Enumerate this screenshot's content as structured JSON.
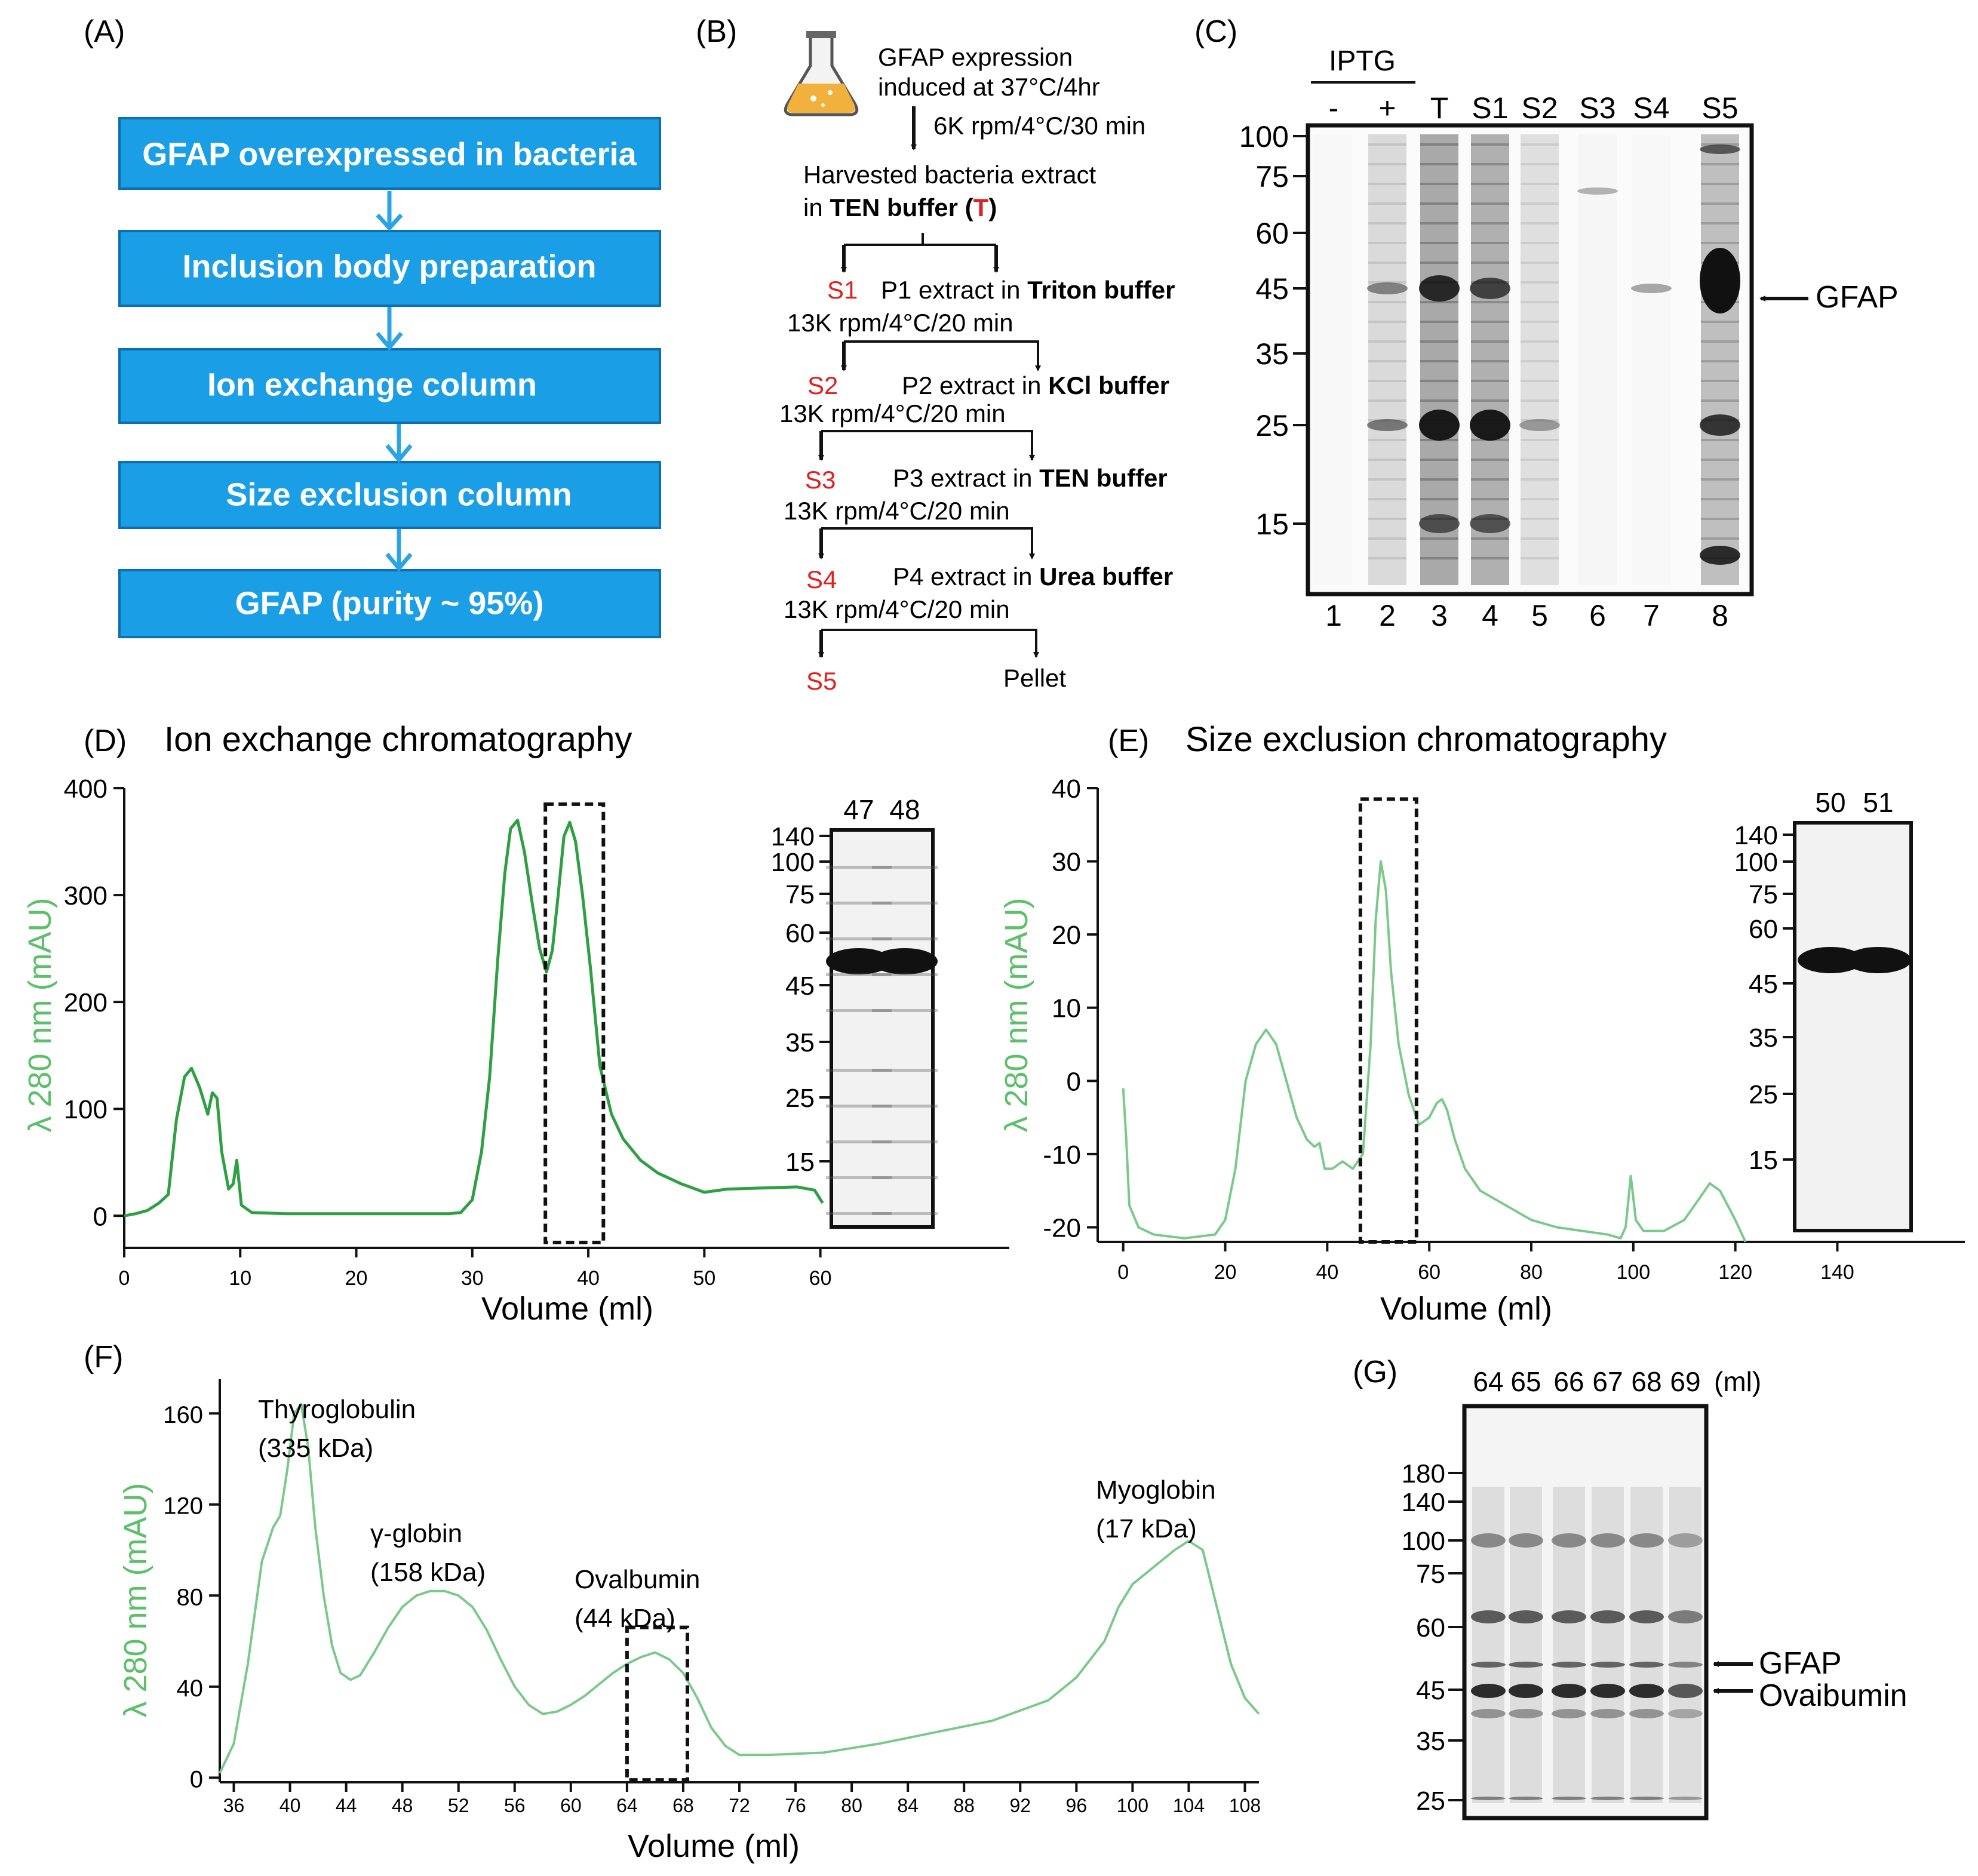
{
  "panels": {
    "A": {
      "label": "(A)"
    },
    "B": {
      "label": "(B)"
    },
    "C": {
      "label": "(C)"
    },
    "D": {
      "label": "(D)",
      "title": "Ion exchange chromatography"
    },
    "E": {
      "label": "(E)",
      "title": "Size exclusion chromatography"
    },
    "F": {
      "label": "(F)"
    },
    "G": {
      "label": "(G)"
    }
  },
  "colors": {
    "box_fill": "#1a9fe6",
    "box_arrow": "#2ba4e6",
    "trace_d": "#2ea043",
    "trace_ef": "#7bc98a",
    "axis_label": "#5cc06a",
    "red": "#e02020"
  },
  "flow_a": {
    "steps": [
      "GFAP  overexpressed in bacteria",
      "Inclusion body preparation",
      "Ion exchange column",
      "Size exclusion column",
      "GFAP (purity ~ 95%)"
    ]
  },
  "protocol_b": {
    "expression_line1": "GFAP expression",
    "expression_line2": "induced at 37°C/4hr",
    "spin1": "6K rpm/4°C/30 min",
    "harvest_line1": "Harvested bacteria extract",
    "harvest_line2_pre": "in ",
    "harvest_buffer": "TEN buffer",
    "harvest_paren_open": " (",
    "harvest_T": "T",
    "harvest_paren_close": ")",
    "steps": [
      {
        "s": "S1",
        "p_text": "P1 extract in ",
        "buffer": "Triton buffer",
        "spin": "13K rpm/4°C/20 min"
      },
      {
        "s": "S2",
        "p_text": "P2 extract in ",
        "buffer": "KCl buffer",
        "spin": "13K rpm/4°C/20 min"
      },
      {
        "s": "S3",
        "p_text": "P3 extract in ",
        "buffer": "TEN buffer",
        "spin": "13K rpm/4°C/20 min"
      },
      {
        "s": "S4",
        "p_text": "P4 extract in ",
        "buffer": "Urea buffer",
        "spin": "13K rpm/4°C/20 min"
      }
    ],
    "final_s": "S5",
    "pellet": "Pellet"
  },
  "gel_c": {
    "iptg": "IPTG",
    "lanes_top": [
      "-",
      "+",
      "T",
      "S1",
      "S2",
      "S3",
      "S4",
      "S5"
    ],
    "lanes_bottom": [
      "1",
      "2",
      "3",
      "4",
      "5",
      "6",
      "7",
      "8"
    ],
    "markers": [
      "100",
      "75",
      "60",
      "45",
      "35",
      "25",
      "15"
    ],
    "arrow_label": "GFAP"
  },
  "chart_data": [
    {
      "id": "D",
      "type": "line",
      "title": "Ion exchange chromatography",
      "xlabel": "Volume (ml)",
      "ylabel": "λ 280 nm (mAU)",
      "xlim": [
        0,
        75
      ],
      "ylim": [
        -30,
        400
      ],
      "xticks": [
        "0",
        "10",
        "20",
        "30",
        "40",
        "50",
        "60"
      ],
      "yticks": [
        "0",
        "100",
        "200",
        "300",
        "400"
      ],
      "x": [
        0,
        1,
        2,
        3,
        3.8,
        4.5,
        5.2,
        5.8,
        6.5,
        7.2,
        7.6,
        8.0,
        8.4,
        9.0,
        9.4,
        9.7,
        10.1,
        11,
        14,
        20,
        25,
        28,
        29,
        30,
        30.8,
        31.5,
        32.2,
        32.8,
        33.3,
        33.9,
        34.5,
        35.2,
        35.8,
        36.4,
        36.9,
        37.4,
        37.9,
        38.4,
        38.9,
        39.5,
        40.2,
        41,
        42,
        43,
        44.5,
        46,
        48,
        50,
        52,
        55,
        58,
        59.5,
        60.2
      ],
      "y": [
        0,
        2,
        5,
        12,
        20,
        90,
        130,
        138,
        120,
        95,
        115,
        110,
        60,
        25,
        30,
        52,
        10,
        3,
        2,
        2,
        2,
        2,
        3,
        15,
        60,
        130,
        240,
        320,
        362,
        370,
        340,
        290,
        250,
        228,
        248,
        300,
        355,
        368,
        350,
        300,
        230,
        140,
        95,
        72,
        52,
        40,
        30,
        22,
        25,
        26,
        27,
        24,
        12
      ],
      "rect_x": [
        36.3,
        41.3
      ],
      "rect_y": [
        -25,
        385
      ],
      "inset": {
        "lanes": [
          "47",
          "48"
        ],
        "markers": [
          "140",
          "100",
          "75",
          "60",
          "45",
          "35",
          "25",
          "15"
        ]
      }
    },
    {
      "id": "E",
      "type": "line",
      "title": "Size exclusion chromatography",
      "xlabel": "Volume (ml)",
      "ylabel": "λ 280 nm (mAU)",
      "xlim": [
        -5,
        165
      ],
      "ylim": [
        -22,
        40
      ],
      "xticks": [
        "0",
        "20",
        "40",
        "60",
        "80",
        "100",
        "120",
        "140"
      ],
      "yticks": [
        "-20",
        "-10",
        "0",
        "10",
        "20",
        "30",
        "40"
      ],
      "x": [
        0,
        0.6,
        1.2,
        3,
        6,
        12,
        18,
        20,
        22,
        24,
        26,
        28,
        30,
        32,
        34,
        36,
        37.5,
        38.5,
        39.5,
        41,
        43,
        45,
        47,
        48.5,
        49.5,
        50.5,
        51.5,
        52.5,
        54,
        56,
        58,
        60,
        61.5,
        62.5,
        63.5,
        65,
        67,
        70,
        75,
        80,
        85,
        90,
        95,
        97.5,
        98.5,
        99.5,
        100.5,
        102,
        106,
        110,
        113,
        115,
        117,
        120,
        122
      ],
      "y": [
        -1,
        -8,
        -17,
        -20,
        -21,
        -21.5,
        -21,
        -19,
        -12,
        0,
        5,
        7,
        5,
        0,
        -5,
        -8,
        -9,
        -8.5,
        -12,
        -12,
        -11,
        -12,
        -10,
        5,
        22,
        30,
        26,
        15,
        5,
        -2,
        -6,
        -5,
        -3,
        -2.5,
        -4,
        -8,
        -12,
        -15,
        -17,
        -19,
        -20,
        -20.5,
        -21,
        -21.5,
        -20,
        -13,
        -19,
        -20.5,
        -20.5,
        -19,
        -16,
        -14,
        -15,
        -19,
        -22
      ],
      "rect_x": [
        46.5,
        57.5
      ],
      "rect_y": [
        -22,
        38.5
      ],
      "inset": {
        "lanes": [
          "50",
          "51"
        ],
        "markers": [
          "140",
          "100",
          "75",
          "60",
          "45",
          "35",
          "25",
          "15"
        ]
      }
    },
    {
      "id": "F",
      "type": "line",
      "xlabel": "Volume (ml)",
      "ylabel": "λ 280 nm (mAU)",
      "xlim": [
        35,
        109
      ],
      "ylim": [
        -2,
        175
      ],
      "xticks": [
        "36",
        "40",
        "44",
        "48",
        "52",
        "56",
        "60",
        "64",
        "68",
        "72",
        "76",
        "80",
        "84",
        "88",
        "92",
        "96",
        "100",
        "104",
        "108"
      ],
      "yticks": [
        "0",
        "40",
        "80",
        "120",
        "160"
      ],
      "x": [
        35,
        36,
        37,
        38,
        38.8,
        39.3,
        39.8,
        40.3,
        40.8,
        41.3,
        41.8,
        42.4,
        43,
        43.6,
        44.3,
        45,
        46,
        47,
        48,
        49,
        50,
        51,
        52,
        53,
        54,
        55,
        56,
        57,
        58,
        59,
        60,
        61,
        62,
        63,
        64,
        65,
        66,
        67,
        68,
        69,
        70,
        71,
        72,
        74,
        78,
        82,
        86,
        90,
        94,
        96,
        98,
        99,
        100,
        101,
        102,
        103,
        104,
        105,
        106,
        107,
        108,
        109
      ],
      "y": [
        2,
        15,
        50,
        95,
        110,
        115,
        135,
        160,
        164,
        145,
        110,
        80,
        58,
        46,
        43,
        45,
        55,
        66,
        75,
        80,
        82,
        82,
        80,
        75,
        65,
        52,
        40,
        32,
        28,
        29,
        32,
        36,
        41,
        46,
        50,
        53,
        55,
        52,
        46,
        35,
        22,
        14,
        10,
        10,
        11,
        15,
        20,
        25,
        34,
        44,
        60,
        75,
        85,
        90,
        95,
        100,
        104,
        100,
        75,
        50,
        35,
        28
      ],
      "rect_x": [
        64,
        68.3
      ],
      "rect_y": [
        -1,
        66
      ],
      "annotations": [
        {
          "line1": "Thyroglobulin",
          "line2": "(335 kDa)"
        },
        {
          "line1": "γ-globin",
          "line2": "(158 kDa)"
        },
        {
          "line1": "Ovalbumin",
          "line2": "(44 kDa)"
        },
        {
          "line1": "Myoglobin",
          "line2": "(17 kDa)"
        }
      ]
    }
  ],
  "gel_g": {
    "lanes": [
      "64",
      "65",
      "66",
      "67",
      "68",
      "69"
    ],
    "unit": "(ml)",
    "markers": [
      "180",
      "140",
      "100",
      "75",
      "60",
      "45",
      "35",
      "25"
    ],
    "arrow1": "GFAP",
    "arrow2": "Ovaibumin"
  }
}
